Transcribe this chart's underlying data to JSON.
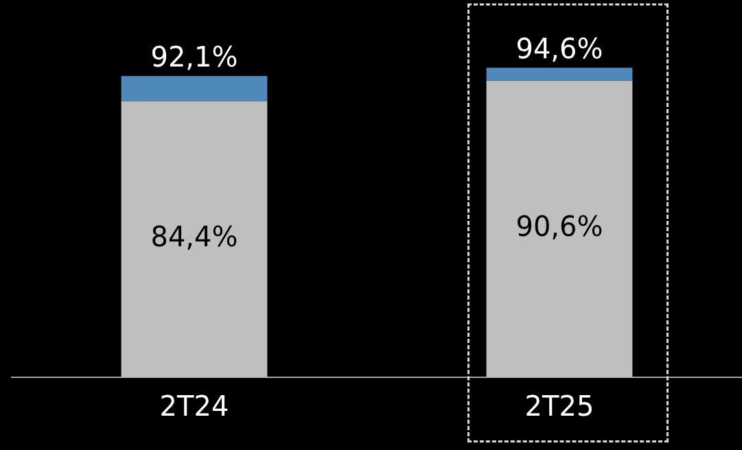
{
  "chart_data": {
    "type": "bar",
    "stacked": true,
    "categories": [
      "2T24",
      "2T25"
    ],
    "series": [
      {
        "color": "#bfbfbf",
        "values": [
          84.4,
          90.6
        ],
        "value_labels": [
          "84,4%",
          "90,6%"
        ]
      },
      {
        "color": "#4f88bb",
        "values": [
          7.7,
          4.0
        ]
      }
    ],
    "totals": [
      "92,1%",
      "94,6%"
    ],
    "tick_labels": "x"
  }
}
